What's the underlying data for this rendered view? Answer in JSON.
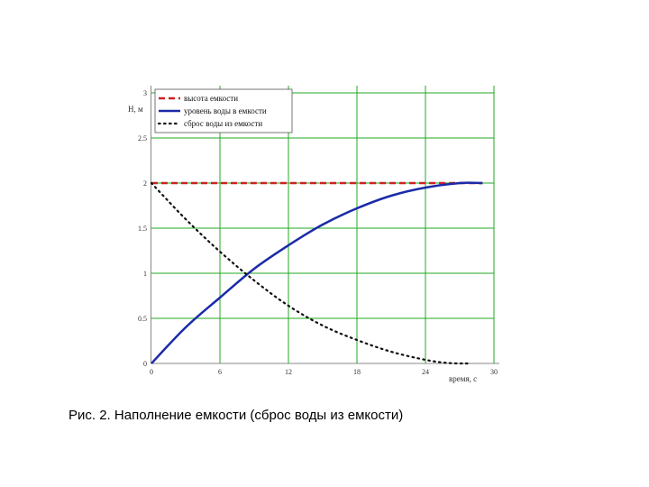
{
  "caption": "Рис. 2. Наполнение емкости (сброс воды из емкости)",
  "chart_data": {
    "type": "line",
    "title": "",
    "xlabel": "время, с",
    "ylabel": "Н, м",
    "xlim": [
      0,
      30
    ],
    "ylim": [
      0,
      3
    ],
    "xticks": [
      0,
      6,
      12,
      18,
      24,
      30
    ],
    "yticks": [
      0,
      0.5,
      1,
      1.5,
      2,
      2.5,
      3
    ],
    "ytick_labels": [
      "0",
      "0.5",
      "1",
      "1.5",
      "2",
      "2.5",
      "3"
    ],
    "grid": true,
    "grid_color": "#22aa22",
    "legend_position": "top-left",
    "series": [
      {
        "name": "высота емкости",
        "style": "dashed",
        "color": "#cc2222",
        "x": [
          0,
          29
        ],
        "y": [
          2,
          2
        ]
      },
      {
        "name": "уровень воды в емкости",
        "style": "solid",
        "color": "#1a2aa8",
        "x": [
          0,
          3,
          6,
          9,
          12,
          15,
          18,
          21,
          24,
          27,
          29
        ],
        "y": [
          0,
          0.4,
          0.73,
          1.05,
          1.31,
          1.54,
          1.72,
          1.86,
          1.95,
          2.0,
          2.0
        ]
      },
      {
        "name": "сброс воды из емкости",
        "style": "dotted",
        "color": "#111111",
        "x": [
          0,
          3,
          6,
          9,
          12,
          15,
          18,
          21,
          24,
          26,
          28
        ],
        "y": [
          2,
          1.6,
          1.24,
          0.92,
          0.64,
          0.42,
          0.26,
          0.13,
          0.04,
          0.005,
          0
        ]
      }
    ]
  }
}
